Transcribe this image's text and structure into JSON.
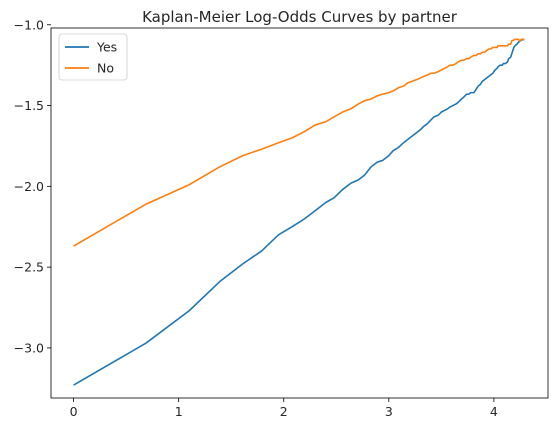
{
  "chart_data": {
    "type": "line",
    "title": "Kaplan-Meier Log-Odds Curves by partner",
    "xlabel": "",
    "ylabel": "",
    "xlim": [
      -0.215,
      4.515
    ],
    "ylim": [
      -3.31,
      -1.02
    ],
    "xticks": [
      0,
      1,
      2,
      3,
      4
    ],
    "yticks": [
      -3.0,
      -2.5,
      -2.0,
      -1.5,
      -1.0
    ],
    "xtick_labels": [
      "0",
      "1",
      "2",
      "3",
      "4"
    ],
    "ytick_labels": [
      "−3.0",
      "−2.5",
      "−2.0",
      "−1.5",
      "−1.0"
    ],
    "grid": false,
    "legend_position": "top-left",
    "series": [
      {
        "name": "Yes",
        "color": "#1f77b4",
        "points": [
          [
            0.0,
            -3.23
          ],
          [
            0.69,
            -2.97
          ],
          [
            1.1,
            -2.77
          ],
          [
            1.39,
            -2.59
          ],
          [
            1.61,
            -2.48
          ],
          [
            1.79,
            -2.4
          ],
          [
            1.95,
            -2.3
          ],
          [
            2.08,
            -2.25
          ],
          [
            2.2,
            -2.2
          ],
          [
            2.3,
            -2.15
          ],
          [
            2.4,
            -2.1
          ],
          [
            2.48,
            -2.07
          ],
          [
            2.56,
            -2.02
          ],
          [
            2.64,
            -1.98
          ],
          [
            2.71,
            -1.96
          ],
          [
            2.77,
            -1.93
          ],
          [
            2.83,
            -1.88
          ],
          [
            2.89,
            -1.85
          ],
          [
            2.94,
            -1.84
          ],
          [
            3.0,
            -1.81
          ],
          [
            3.04,
            -1.78
          ],
          [
            3.09,
            -1.76
          ],
          [
            3.14,
            -1.73
          ],
          [
            3.18,
            -1.71
          ],
          [
            3.22,
            -1.69
          ],
          [
            3.26,
            -1.67
          ],
          [
            3.3,
            -1.65
          ],
          [
            3.33,
            -1.63
          ],
          [
            3.37,
            -1.61
          ],
          [
            3.4,
            -1.59
          ],
          [
            3.43,
            -1.57
          ],
          [
            3.47,
            -1.56
          ],
          [
            3.5,
            -1.54
          ],
          [
            3.53,
            -1.53
          ],
          [
            3.56,
            -1.52
          ],
          [
            3.58,
            -1.51
          ],
          [
            3.61,
            -1.5
          ],
          [
            3.64,
            -1.49
          ],
          [
            3.66,
            -1.48
          ],
          [
            3.69,
            -1.46
          ],
          [
            3.71,
            -1.45
          ],
          [
            3.74,
            -1.43
          ],
          [
            3.76,
            -1.43
          ],
          [
            3.78,
            -1.42
          ],
          [
            3.81,
            -1.42
          ],
          [
            3.83,
            -1.4
          ],
          [
            3.85,
            -1.38
          ],
          [
            3.87,
            -1.37
          ],
          [
            3.89,
            -1.35
          ],
          [
            3.91,
            -1.34
          ],
          [
            3.93,
            -1.33
          ],
          [
            3.95,
            -1.32
          ],
          [
            3.97,
            -1.31
          ],
          [
            3.99,
            -1.3
          ],
          [
            4.01,
            -1.28
          ],
          [
            4.03,
            -1.27
          ],
          [
            4.04,
            -1.26
          ],
          [
            4.06,
            -1.25
          ],
          [
            4.08,
            -1.25
          ],
          [
            4.09,
            -1.24
          ],
          [
            4.11,
            -1.24
          ],
          [
            4.13,
            -1.23
          ],
          [
            4.14,
            -1.21
          ],
          [
            4.16,
            -1.2
          ],
          [
            4.17,
            -1.18
          ],
          [
            4.19,
            -1.14
          ],
          [
            4.2,
            -1.13
          ],
          [
            4.22,
            -1.12
          ],
          [
            4.23,
            -1.11
          ],
          [
            4.25,
            -1.1
          ],
          [
            4.26,
            -1.095
          ],
          [
            4.29,
            -1.09
          ]
        ]
      },
      {
        "name": "No",
        "color": "#ff7f0e",
        "points": [
          [
            0.0,
            -2.37
          ],
          [
            0.69,
            -2.11
          ],
          [
            1.1,
            -1.99
          ],
          [
            1.39,
            -1.88
          ],
          [
            1.61,
            -1.81
          ],
          [
            1.79,
            -1.77
          ],
          [
            1.95,
            -1.73
          ],
          [
            2.08,
            -1.7
          ],
          [
            2.2,
            -1.66
          ],
          [
            2.3,
            -1.62
          ],
          [
            2.4,
            -1.6
          ],
          [
            2.48,
            -1.57
          ],
          [
            2.56,
            -1.54
          ],
          [
            2.64,
            -1.52
          ],
          [
            2.71,
            -1.49
          ],
          [
            2.77,
            -1.47
          ],
          [
            2.83,
            -1.46
          ],
          [
            2.89,
            -1.44
          ],
          [
            2.94,
            -1.43
          ],
          [
            3.0,
            -1.42
          ],
          [
            3.04,
            -1.41
          ],
          [
            3.09,
            -1.39
          ],
          [
            3.14,
            -1.38
          ],
          [
            3.18,
            -1.36
          ],
          [
            3.22,
            -1.35
          ],
          [
            3.26,
            -1.34
          ],
          [
            3.3,
            -1.33
          ],
          [
            3.33,
            -1.32
          ],
          [
            3.37,
            -1.31
          ],
          [
            3.4,
            -1.3
          ],
          [
            3.43,
            -1.3
          ],
          [
            3.47,
            -1.29
          ],
          [
            3.5,
            -1.28
          ],
          [
            3.53,
            -1.27
          ],
          [
            3.56,
            -1.26
          ],
          [
            3.58,
            -1.25
          ],
          [
            3.61,
            -1.25
          ],
          [
            3.64,
            -1.24
          ],
          [
            3.66,
            -1.23
          ],
          [
            3.69,
            -1.22
          ],
          [
            3.71,
            -1.22
          ],
          [
            3.74,
            -1.21
          ],
          [
            3.76,
            -1.21
          ],
          [
            3.78,
            -1.2
          ],
          [
            3.81,
            -1.19
          ],
          [
            3.83,
            -1.19
          ],
          [
            3.85,
            -1.18
          ],
          [
            3.87,
            -1.18
          ],
          [
            3.89,
            -1.17
          ],
          [
            3.91,
            -1.17
          ],
          [
            3.93,
            -1.16
          ],
          [
            3.95,
            -1.15
          ],
          [
            3.97,
            -1.15
          ],
          [
            3.99,
            -1.14
          ],
          [
            4.01,
            -1.14
          ],
          [
            4.03,
            -1.14
          ],
          [
            4.04,
            -1.13
          ],
          [
            4.06,
            -1.13
          ],
          [
            4.08,
            -1.13
          ],
          [
            4.09,
            -1.13
          ],
          [
            4.11,
            -1.13
          ],
          [
            4.13,
            -1.13
          ],
          [
            4.14,
            -1.12
          ],
          [
            4.16,
            -1.12
          ],
          [
            4.17,
            -1.1
          ],
          [
            4.19,
            -1.095
          ],
          [
            4.2,
            -1.09
          ],
          [
            4.22,
            -1.09
          ],
          [
            4.23,
            -1.09
          ],
          [
            4.25,
            -1.1
          ],
          [
            4.26,
            -1.09
          ],
          [
            4.29,
            -1.09
          ]
        ]
      }
    ]
  }
}
